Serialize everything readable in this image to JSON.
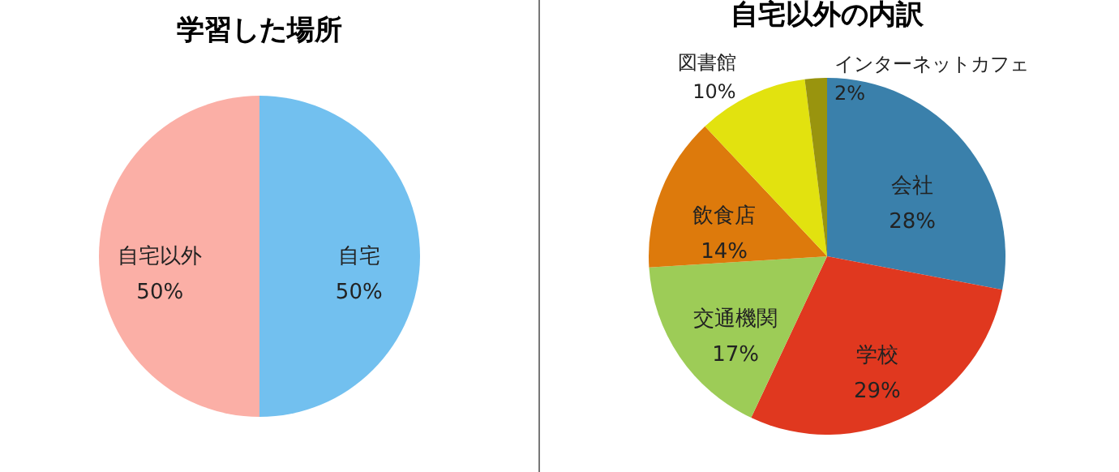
{
  "chart_data": [
    {
      "type": "pie",
      "title": "学習した場所",
      "categories": [
        "自宅",
        "自宅以外"
      ],
      "values": [
        50,
        50
      ],
      "colors": [
        "#72c0ef",
        "#fbafa6"
      ],
      "value_labels": [
        "50%",
        "50%"
      ]
    },
    {
      "type": "pie",
      "title": "自宅以外の内訳",
      "categories": [
        "会社",
        "学校",
        "交通機関",
        "飲食店",
        "図書館",
        "インターネットカフェ"
      ],
      "values": [
        28,
        29,
        17,
        14,
        10,
        2
      ],
      "colors": [
        "#3a80ab",
        "#e0381f",
        "#9dcc57",
        "#dd7a0c",
        "#e2e20f",
        "#99940e"
      ],
      "value_labels": [
        "28%",
        "29%",
        "17%",
        "14%",
        "10%",
        "2%"
      ]
    }
  ]
}
